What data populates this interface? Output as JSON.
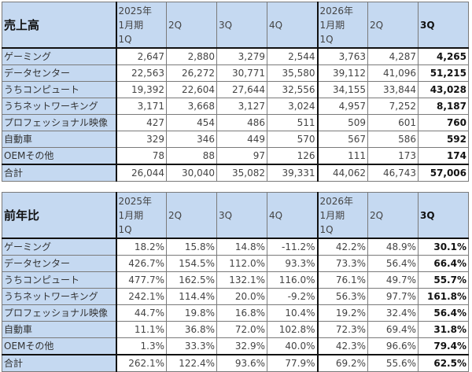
{
  "sales": {
    "title": "売上高",
    "headers": [
      "2025年\n1月期\n1Q",
      "2Q",
      "3Q",
      "4Q",
      "2026年\n1月期\n1Q",
      "2Q",
      "3Q"
    ],
    "rows": [
      {
        "label": "ゲーミング",
        "values": [
          "2,647",
          "2,880",
          "3,279",
          "2,544",
          "3,763",
          "4,287",
          "4,265"
        ]
      },
      {
        "label": "データセンター",
        "values": [
          "22,563",
          "26,272",
          "30,771",
          "35,580",
          "39,112",
          "41,096",
          "51,215"
        ]
      },
      {
        "label": "うちコンピュート",
        "values": [
          "19,392",
          "22,604",
          "27,644",
          "32,556",
          "34,155",
          "33,844",
          "43,028"
        ]
      },
      {
        "label": "うちネットワーキング",
        "values": [
          "3,171",
          "3,668",
          "3,127",
          "3,024",
          "4,957",
          "7,252",
          "8,187"
        ]
      },
      {
        "label": "プロフェッショナル映像",
        "values": [
          "427",
          "454",
          "486",
          "511",
          "509",
          "601",
          "760"
        ]
      },
      {
        "label": "自動車",
        "values": [
          "329",
          "346",
          "449",
          "570",
          "567",
          "586",
          "592"
        ]
      },
      {
        "label": "OEMその他",
        "values": [
          "78",
          "88",
          "97",
          "126",
          "111",
          "173",
          "174"
        ]
      },
      {
        "label": "合計",
        "values": [
          "26,044",
          "30,040",
          "35,082",
          "39,331",
          "44,062",
          "46,743",
          "57,006"
        ]
      }
    ]
  },
  "yoy": {
    "title": "前年比",
    "headers": [
      "2025年\n1月期\n1Q",
      "2Q",
      "3Q",
      "4Q",
      "2026年\n1月期\n1Q",
      "2Q",
      "3Q"
    ],
    "rows": [
      {
        "label": "ゲーミング",
        "values": [
          "18.2%",
          "15.8%",
          "14.8%",
          "-11.2%",
          "42.2%",
          "48.9%",
          "30.1%"
        ]
      },
      {
        "label": "データセンター",
        "values": [
          "426.7%",
          "154.5%",
          "112.0%",
          "93.3%",
          "73.3%",
          "56.4%",
          "66.4%"
        ]
      },
      {
        "label": "うちコンピュート",
        "values": [
          "477.7%",
          "162.5%",
          "132.1%",
          "116.0%",
          "76.1%",
          "49.7%",
          "55.7%"
        ]
      },
      {
        "label": "うちネットワーキング",
        "values": [
          "242.1%",
          "114.4%",
          "20.0%",
          "-9.2%",
          "56.3%",
          "97.7%",
          "161.8%"
        ]
      },
      {
        "label": "プロフェッショナル映像",
        "values": [
          "44.7%",
          "19.8%",
          "16.8%",
          "10.4%",
          "19.2%",
          "32.4%",
          "56.4%"
        ]
      },
      {
        "label": "自動車",
        "values": [
          "11.1%",
          "36.8%",
          "72.0%",
          "102.8%",
          "72.3%",
          "69.4%",
          "31.8%"
        ]
      },
      {
        "label": "OEMその他",
        "values": [
          "1.3%",
          "33.3%",
          "32.9%",
          "40.0%",
          "42.3%",
          "96.6%",
          "79.4%"
        ]
      },
      {
        "label": "合計",
        "values": [
          "262.1%",
          "122.4%",
          "93.6%",
          "77.9%",
          "69.2%",
          "55.6%",
          "62.5%"
        ]
      }
    ]
  }
}
